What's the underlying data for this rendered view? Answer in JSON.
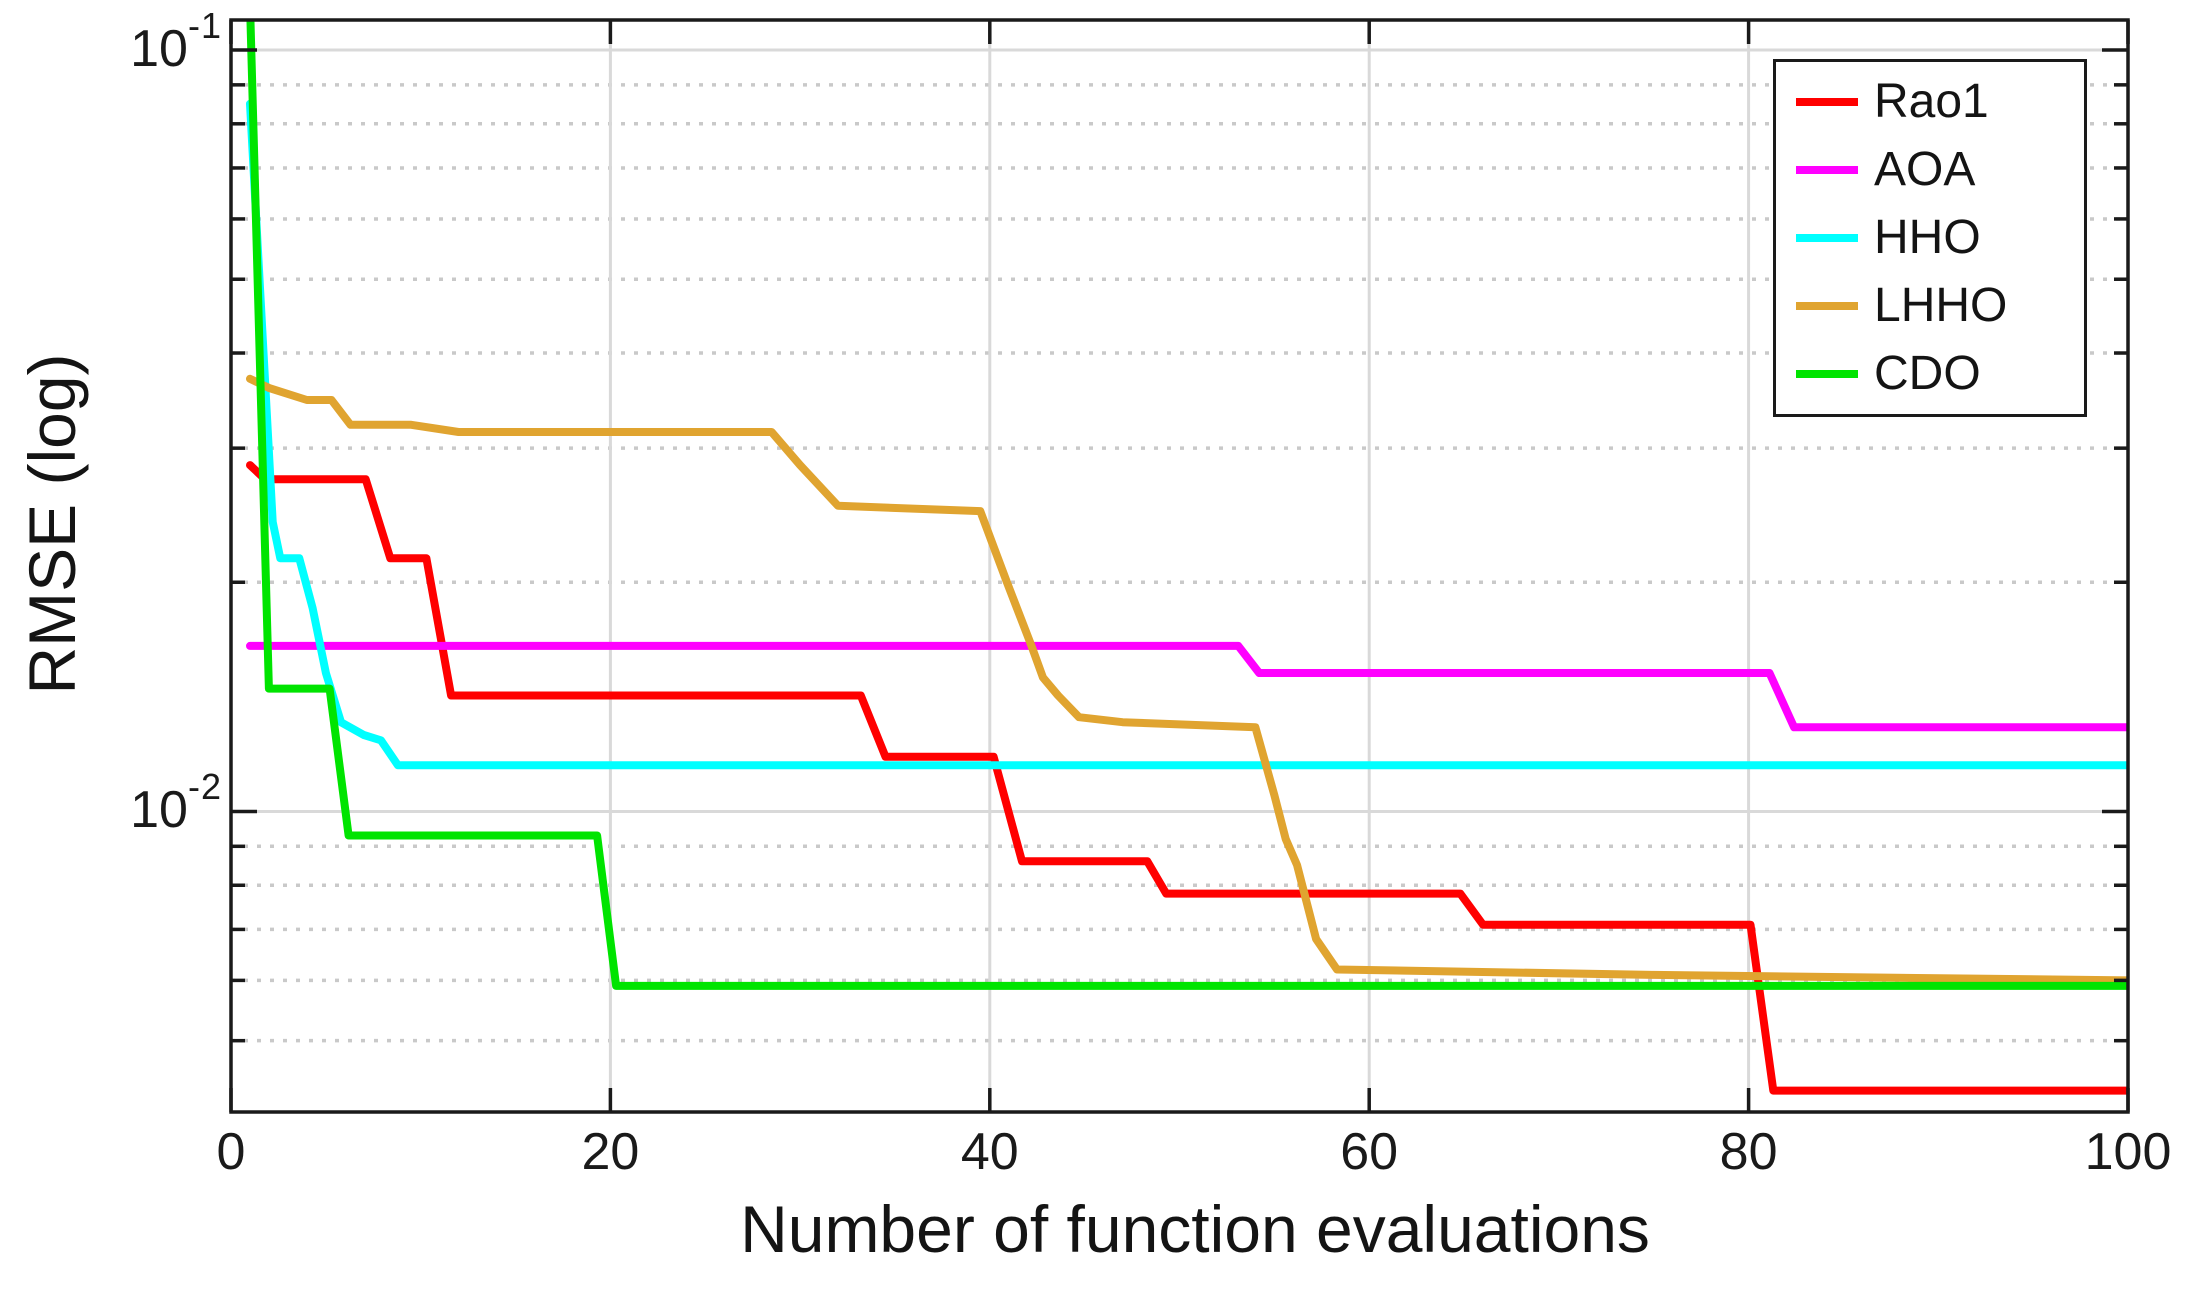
{
  "figure": {
    "background": "#ffffff",
    "axis_color": "#1a1a1a",
    "text_color": "#141414"
  },
  "chart_data": {
    "type": "line",
    "title": "",
    "xlabel": "Number of function evaluations",
    "ylabel": "RMSE (log)",
    "grid": {
      "major_color": "#d9d9d9",
      "minor_color": "#c9c9c9",
      "minor_style": "dotted",
      "x_major_values": [
        20,
        40,
        60,
        80
      ],
      "y_major_values": [
        0.1,
        0.01
      ],
      "y_minor_values": [
        0.09,
        0.08,
        0.07,
        0.06,
        0.05,
        0.04,
        0.03,
        0.02,
        0.009,
        0.008,
        0.007,
        0.006,
        0.005
      ]
    },
    "x_axis": {
      "min": 0,
      "max": 100,
      "scale": "linear",
      "ticks": [
        {
          "value": 0,
          "label": "0"
        },
        {
          "value": 20,
          "label": "20"
        },
        {
          "value": 40,
          "label": "40"
        },
        {
          "value": 60,
          "label": "60"
        },
        {
          "value": 80,
          "label": "80"
        },
        {
          "value": 100,
          "label": "100"
        }
      ]
    },
    "y_axis": {
      "min": 0.00403,
      "max": 0.1095,
      "scale": "log",
      "major_ticks": [
        {
          "value": 0.1,
          "base": "10",
          "exp": "-1"
        },
        {
          "value": 0.01,
          "base": "10",
          "exp": "-2"
        }
      ]
    },
    "legend": {
      "position": "northeast"
    },
    "series": [
      {
        "name": "Rao1",
        "color": "#ff0000",
        "x": [
          1,
          1.8,
          7.1,
          8.4,
          10.3,
          11.6,
          33.2,
          34.5,
          40.2,
          41.7,
          48.3,
          49.3,
          64.8,
          66,
          80.1,
          81.3,
          100
        ],
        "y": [
          0.0285,
          0.0273,
          0.0273,
          0.0215,
          0.0215,
          0.0142,
          0.0142,
          0.0118,
          0.0118,
          0.0086,
          0.0086,
          0.0078,
          0.0078,
          0.0071,
          0.0071,
          0.0043,
          0.0043
        ]
      },
      {
        "name": "AOA",
        "color": "#ff00ff",
        "x": [
          1,
          53.1,
          54.2,
          81.1,
          82.4,
          100
        ],
        "y": [
          0.0165,
          0.0165,
          0.0152,
          0.0152,
          0.0129,
          0.0129
        ]
      },
      {
        "name": "HHO",
        "color": "#00ffff",
        "x": [
          1,
          2.2,
          2.6,
          3.6,
          4.3,
          5.0,
          5.8,
          7.0,
          7.9,
          8.8,
          100
        ],
        "y": [
          0.085,
          0.024,
          0.0215,
          0.0215,
          0.0185,
          0.0152,
          0.0131,
          0.0126,
          0.0124,
          0.0115,
          0.0115
        ]
      },
      {
        "name": "LHHO",
        "color": "#e0a430",
        "x": [
          1,
          2,
          4,
          5.3,
          6.3,
          9.5,
          12,
          28.5,
          30,
          32,
          39.5,
          40.9,
          42.2,
          42.8,
          43.6,
          44.7,
          47,
          54,
          55,
          55.6,
          56.2,
          57.2,
          58.3,
          75,
          100
        ],
        "y": [
          0.037,
          0.036,
          0.0347,
          0.0347,
          0.0322,
          0.0322,
          0.0315,
          0.0315,
          0.0285,
          0.0252,
          0.0248,
          0.02,
          0.0165,
          0.015,
          0.0142,
          0.0133,
          0.0131,
          0.0129,
          0.0105,
          0.0092,
          0.0085,
          0.0068,
          0.0062,
          0.0061,
          0.006
        ]
      },
      {
        "name": "CDO",
        "color": "#00e400",
        "x": [
          1,
          2,
          5.2,
          6.2,
          19.3,
          20.3,
          100
        ],
        "y": [
          0.115,
          0.0145,
          0.0145,
          0.0093,
          0.0093,
          0.0059,
          0.0059
        ]
      }
    ]
  }
}
